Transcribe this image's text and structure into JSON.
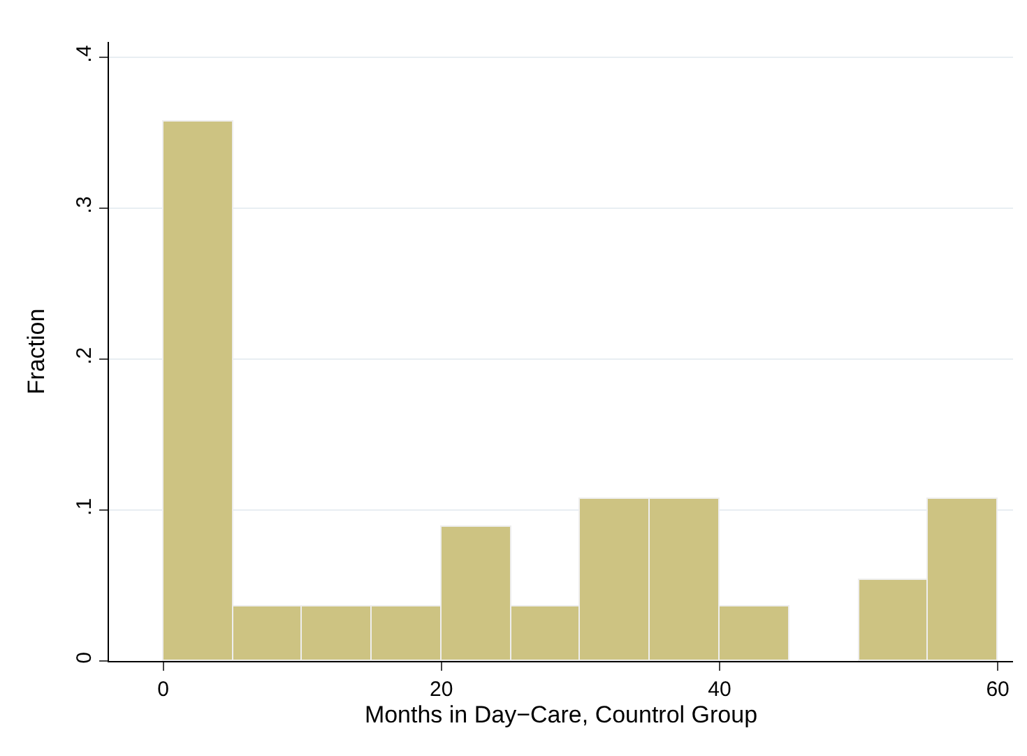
{
  "chart_data": {
    "type": "histogram",
    "xlabel": "Months in Day−Care, Countrol Group",
    "ylabel": "Fraction",
    "bins": [
      0,
      5,
      10,
      15,
      20,
      25,
      30,
      35,
      40,
      45,
      50,
      55,
      60
    ],
    "values": [
      0.357,
      0.036,
      0.036,
      0.036,
      0.089,
      0.036,
      0.107,
      0.107,
      0.036,
      0,
      0.054,
      0.107
    ],
    "color": "#cdc382",
    "xlim": [
      -3.9,
      61.1
    ],
    "xticks": [
      0,
      20,
      40,
      60
    ],
    "ylim": [
      0,
      0.41
    ],
    "yticks": [
      {
        "value": 0,
        "label": "0"
      },
      {
        "value": 0.1,
        "label": ".1"
      },
      {
        "value": 0.2,
        "label": ".2"
      },
      {
        "value": 0.3,
        "label": ".3"
      },
      {
        "value": 0.4,
        "label": ".4"
      }
    ],
    "grid": "y"
  }
}
